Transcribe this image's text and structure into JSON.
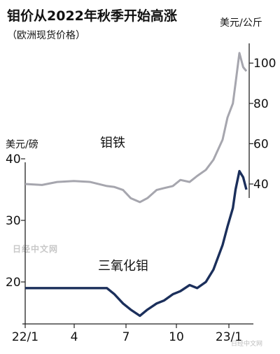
{
  "header": {
    "title": "钼价从2022年秋季开始高涨",
    "subtitle": "（欧洲现货价格）"
  },
  "watermark": {
    "text": "日经中文网",
    "corner": "日经中文网"
  },
  "chart_data": {
    "type": "line",
    "x_ticks": [
      "22/1",
      "4",
      "7",
      "10",
      "23/1"
    ],
    "series": [
      {
        "name": "钼铁",
        "unit": "美元/公斤",
        "axis": "right",
        "color": "#a6a6ae",
        "yticks": [
          40,
          60,
          80,
          100
        ],
        "x": [
          "2022-01-01",
          "2022-02-01",
          "2022-03-01",
          "2022-04-01",
          "2022-05-01",
          "2022-06-01",
          "2022-06-15",
          "2022-07-01",
          "2022-07-15",
          "2022-08-01",
          "2022-08-15",
          "2022-09-01",
          "2022-09-15",
          "2022-10-01",
          "2022-10-15",
          "2022-11-01",
          "2022-11-15",
          "2022-12-01",
          "2022-12-15",
          "2023-01-01",
          "2023-01-10",
          "2023-01-20",
          "2023-01-25",
          "2023-02-01",
          "2023-02-08",
          "2023-02-14"
        ],
        "values": [
          40,
          39.5,
          41,
          41.5,
          41,
          39,
          38.5,
          37,
          33,
          31,
          33,
          37,
          38,
          39,
          42,
          41,
          44,
          47,
          52,
          62,
          73,
          80,
          90,
          105,
          98,
          96
        ]
      },
      {
        "name": "三氧化钼",
        "unit": "美元/磅",
        "axis": "left",
        "color": "#1b2f5b",
        "yticks": [
          20,
          30,
          40
        ],
        "x": [
          "2022-01-01",
          "2022-02-01",
          "2022-03-01",
          "2022-04-01",
          "2022-05-01",
          "2022-06-01",
          "2022-06-15",
          "2022-07-01",
          "2022-07-15",
          "2022-08-01",
          "2022-08-15",
          "2022-09-01",
          "2022-09-15",
          "2022-10-01",
          "2022-10-15",
          "2022-11-01",
          "2022-11-15",
          "2022-12-01",
          "2022-12-15",
          "2023-01-01",
          "2023-01-10",
          "2023-01-20",
          "2023-01-25",
          "2023-02-01",
          "2023-02-08",
          "2023-02-14"
        ],
        "values": [
          19,
          19,
          19,
          19,
          19,
          19,
          18,
          16.5,
          15.5,
          14.5,
          15.5,
          16.5,
          17,
          18,
          18.5,
          19.5,
          19,
          20,
          22,
          26,
          29,
          32,
          35,
          38,
          37,
          35
        ]
      }
    ]
  }
}
